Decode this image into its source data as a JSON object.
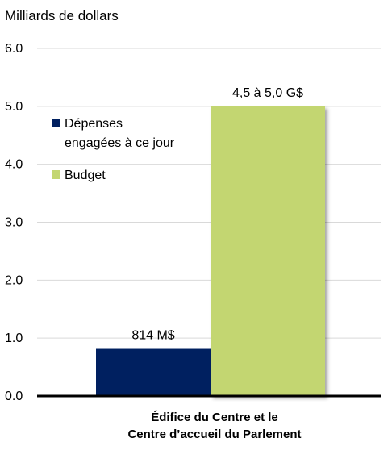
{
  "chart_data": {
    "type": "bar",
    "ylabel": "Milliards de dollars",
    "ylim": [
      0,
      6
    ],
    "yticks": [
      "0.0",
      "1.0",
      "2.0",
      "3.0",
      "4.0",
      "5.0",
      "6.0"
    ],
    "grid": true,
    "legend_position": "top-left inside plot",
    "categories": [
      [
        "Édifice du Centre et le",
        "Centre d’accueil du Parlement"
      ]
    ],
    "series": [
      {
        "name": "Dépenses engagées à ce jour",
        "legend_lines": [
          "Dépenses",
          "engagées à ce jour"
        ],
        "values": [
          0.814
        ],
        "label": "814 M$",
        "color": "#002060"
      },
      {
        "name": "Budget",
        "legend_lines": [
          "Budget"
        ],
        "values": [
          5.0
        ],
        "label": "4,5 à 5,0 G$",
        "color": "#c3d671"
      }
    ]
  }
}
